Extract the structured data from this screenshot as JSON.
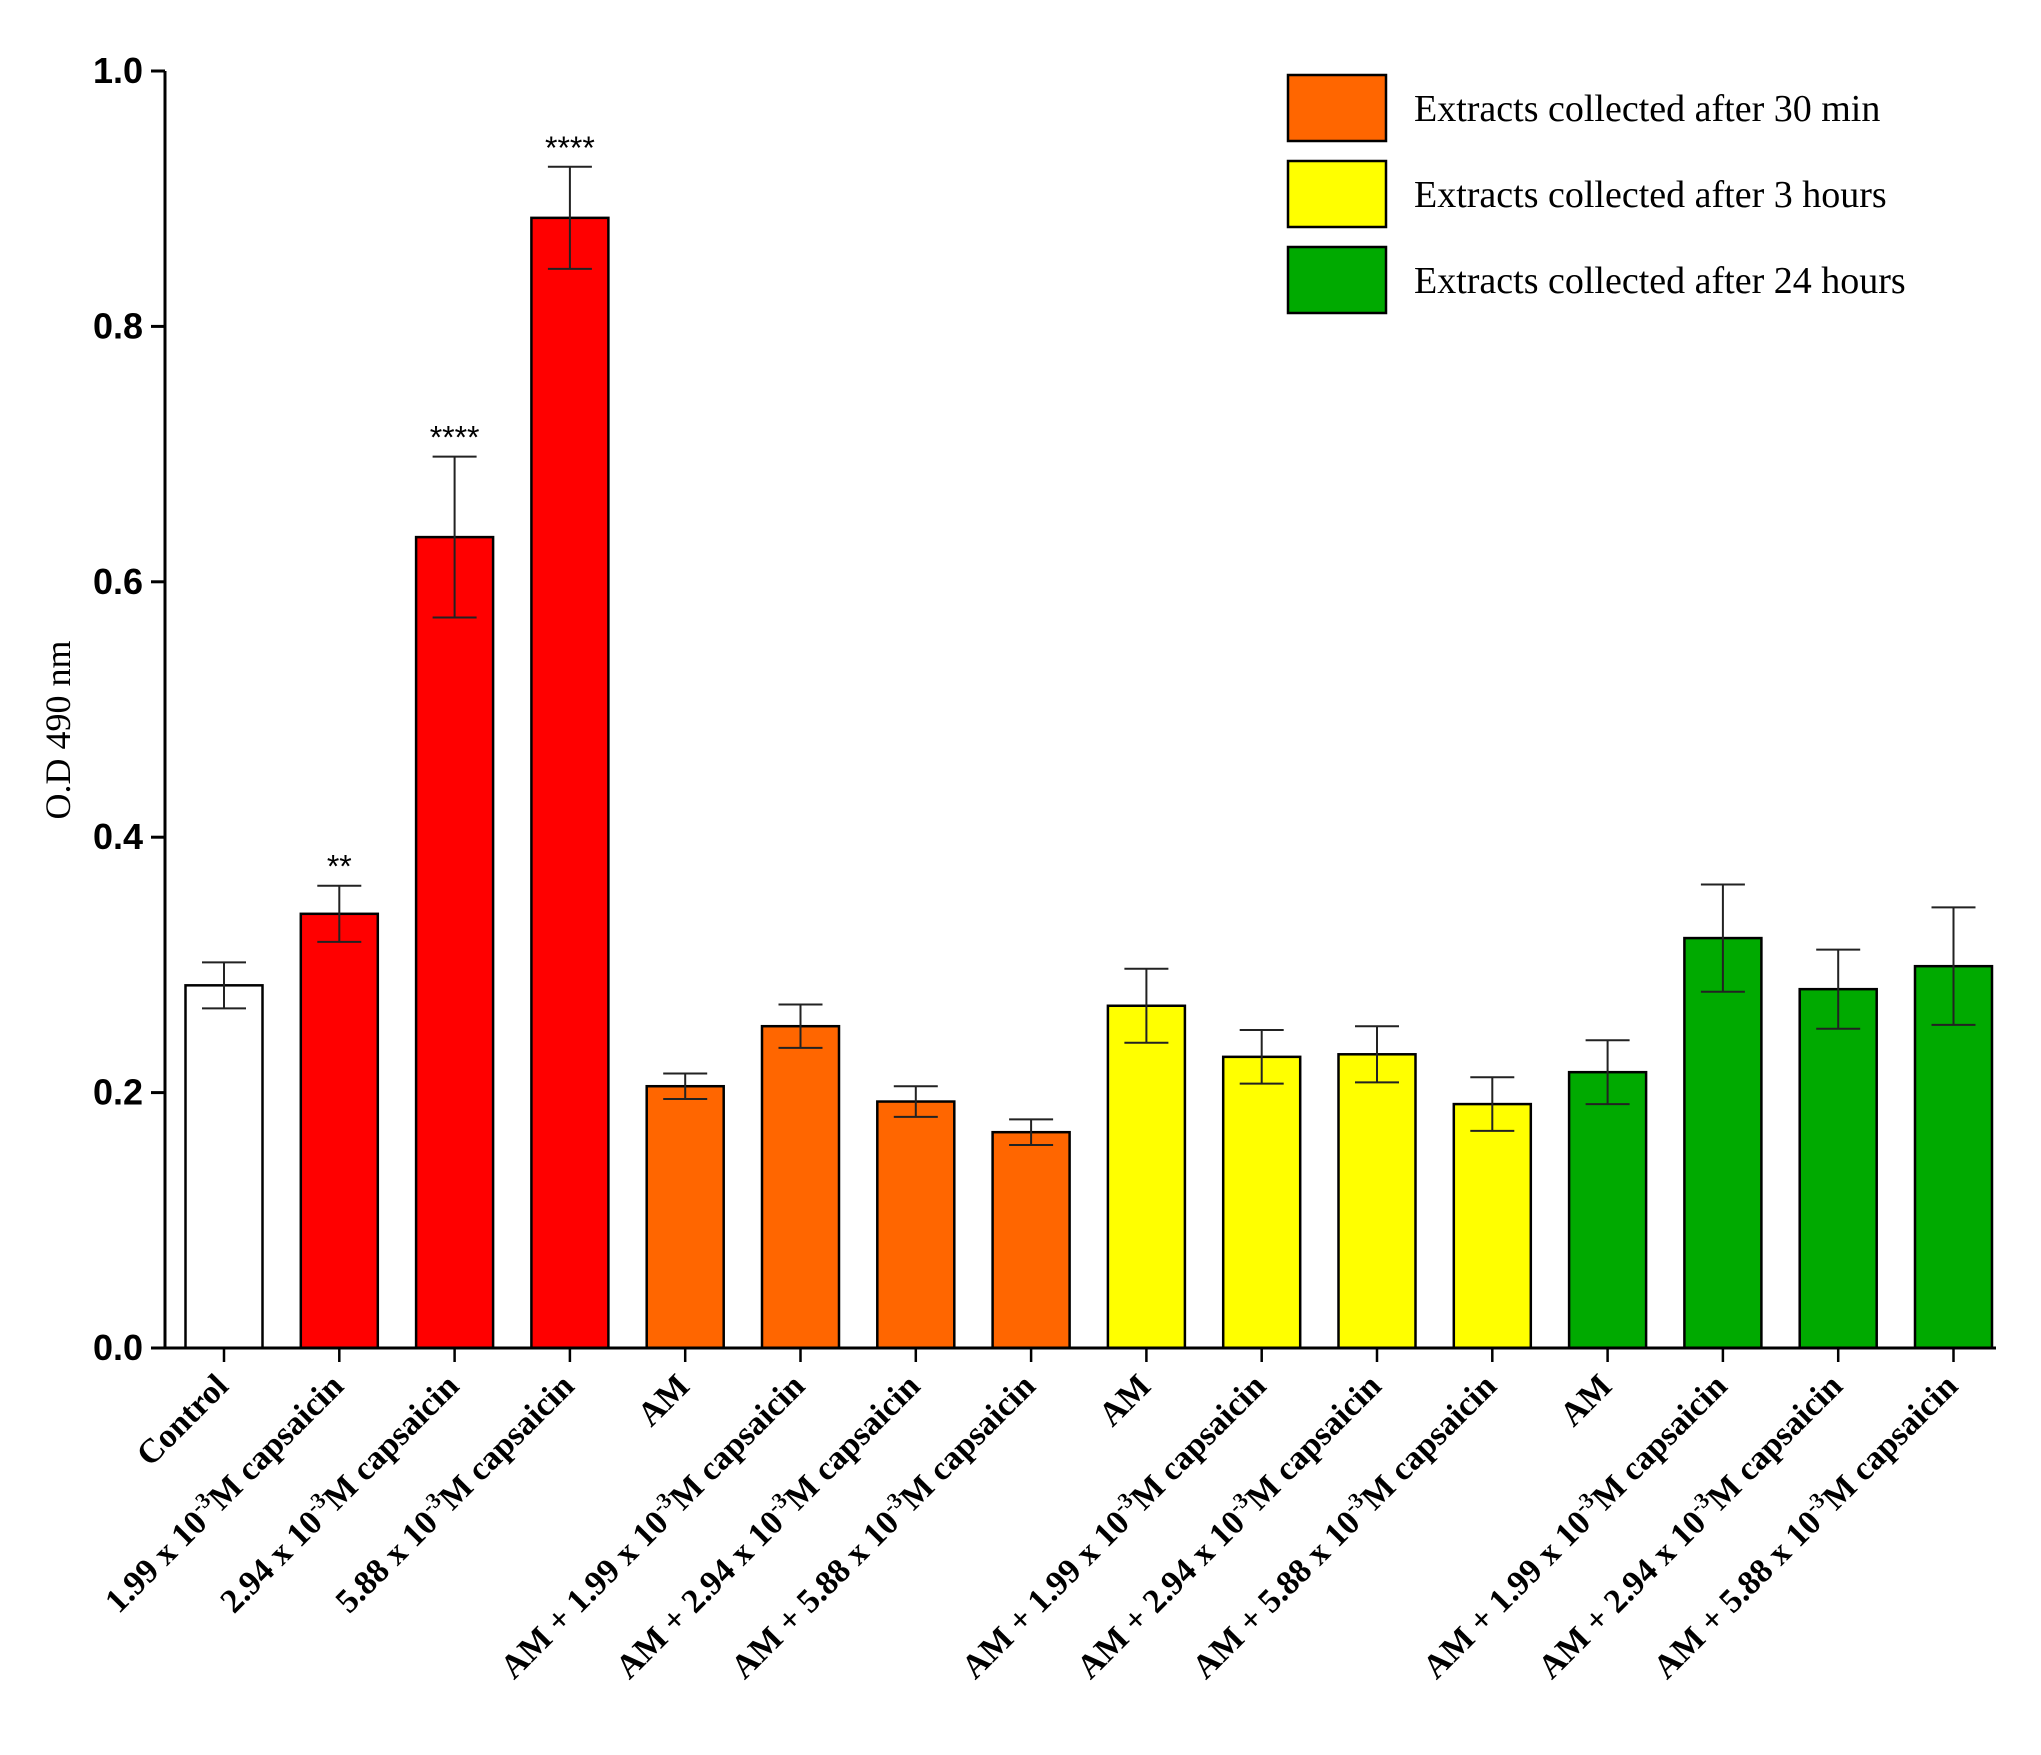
{
  "chart_data": {
    "type": "bar",
    "title": "",
    "xlabel": "",
    "ylabel": "O.D 490 nm",
    "ylim": [
      0,
      1.0
    ],
    "yticks": [
      "0.0",
      "0.2",
      "0.4",
      "0.6",
      "0.8",
      "1.0"
    ],
    "grid": false,
    "legend_position": "top-right",
    "legend": [
      {
        "label": "Extracts collected after 30 min",
        "color": "#ff6600"
      },
      {
        "label": "Extracts collected after 3 hours",
        "color": "#ffff00"
      },
      {
        "label": "Extracts collected after 24 hours",
        "color": "#00aa00"
      }
    ],
    "categories": [
      {
        "pre": "Control",
        "sup": "",
        "post": ""
      },
      {
        "pre": "1.99 x 10",
        "sup": "-3",
        "post": "M capsaicin"
      },
      {
        "pre": "2.94 x 10",
        "sup": "-3",
        "post": "M capsaicin"
      },
      {
        "pre": "5.88 x 10",
        "sup": "-3",
        "post": "M capsaicin"
      },
      {
        "pre": "AM",
        "sup": "",
        "post": ""
      },
      {
        "pre": "AM + 1.99 x 10",
        "sup": "-3",
        "post": "M capsaicin"
      },
      {
        "pre": "AM + 2.94 x 10",
        "sup": "-3",
        "post": "M capsaicin"
      },
      {
        "pre": "AM + 5.88 x 10",
        "sup": "-3",
        "post": "M capsaicin"
      },
      {
        "pre": "AM",
        "sup": "",
        "post": ""
      },
      {
        "pre": "AM + 1.99 x 10",
        "sup": "-3",
        "post": "M capsaicin"
      },
      {
        "pre": "AM + 2.94 x 10",
        "sup": "-3",
        "post": "M capsaicin"
      },
      {
        "pre": "AM + 5.88 x 10",
        "sup": "-3",
        "post": "M capsaicin"
      },
      {
        "pre": "AM",
        "sup": "",
        "post": ""
      },
      {
        "pre": "AM + 1.99 x 10",
        "sup": "-3",
        "post": "M capsaicin"
      },
      {
        "pre": "AM + 2.94 x 10",
        "sup": "-3",
        "post": "M capsaicin"
      },
      {
        "pre": "AM + 5.88 x 10",
        "sup": "-3",
        "post": "M capsaicin"
      }
    ],
    "values": [
      0.284,
      0.34,
      0.635,
      0.885,
      0.205,
      0.252,
      0.193,
      0.169,
      0.268,
      0.228,
      0.23,
      0.191,
      0.216,
      0.321,
      0.281,
      0.299
    ],
    "errors": [
      0.018,
      0.022,
      0.063,
      0.04,
      0.01,
      0.017,
      0.012,
      0.01,
      0.029,
      0.021,
      0.022,
      0.021,
      0.025,
      0.042,
      0.031,
      0.046
    ],
    "colors": [
      "#ffffff",
      "#ff0000",
      "#ff0000",
      "#ff0000",
      "#ff6600",
      "#ff6600",
      "#ff6600",
      "#ff6600",
      "#ffff00",
      "#ffff00",
      "#ffff00",
      "#ffff00",
      "#00aa00",
      "#00aa00",
      "#00aa00",
      "#00aa00"
    ],
    "significance": [
      "",
      "**",
      "****",
      "****",
      "",
      "",
      "",
      "",
      "",
      "",
      "",
      "",
      "",
      "",
      "",
      ""
    ]
  }
}
